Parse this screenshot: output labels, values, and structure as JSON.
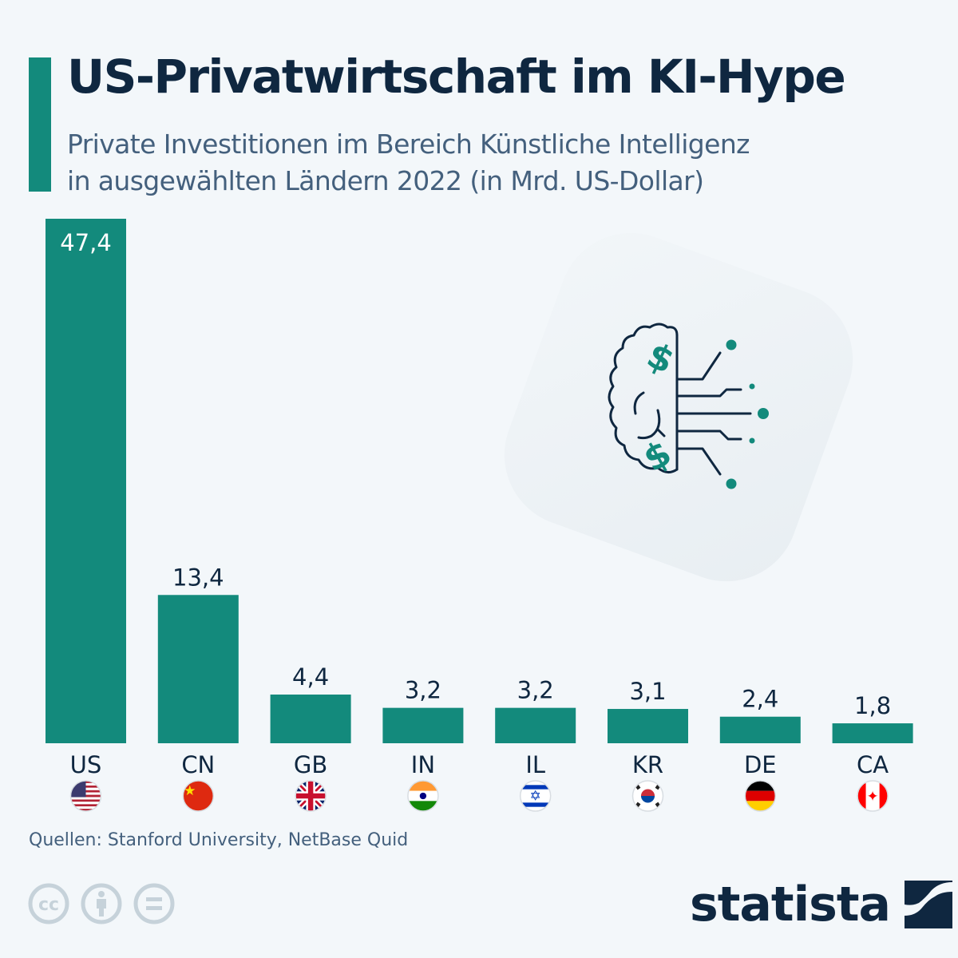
{
  "header": {
    "title": "US-Privatwirtschaft im KI-Hype",
    "subtitle_line1": "Private Investitionen im Bereich Künstliche Intelligenz",
    "subtitle_line2": "in ausgewählten Ländern 2022 (in Mrd. US-Dollar)"
  },
  "colors": {
    "bar": "#138a7c",
    "text_dark": "#0f2740",
    "text_muted": "#44607d",
    "label_inside": "#ffffff",
    "background": "#f3f7fa"
  },
  "chart_data": {
    "type": "bar",
    "title": "US-Privatwirtschaft im KI-Hype",
    "subtitle": "Private Investitionen im Bereich Künstliche Intelligenz in ausgewählten Ländern 2022 (in Mrd. US-Dollar)",
    "xlabel": "",
    "ylabel": "Mrd. US-Dollar",
    "categories": [
      "US",
      "CN",
      "GB",
      "IN",
      "IL",
      "KR",
      "DE",
      "CA"
    ],
    "values": [
      47.4,
      13.4,
      4.4,
      3.2,
      3.2,
      3.1,
      2.4,
      1.8
    ],
    "value_labels": [
      "47,4",
      "13,4",
      "4,4",
      "3,2",
      "3,2",
      "3,1",
      "2,4",
      "1,8"
    ],
    "flags": [
      "us-flag-icon",
      "cn-flag-icon",
      "gb-flag-icon",
      "in-flag-icon",
      "il-flag-icon",
      "kr-flag-icon",
      "de-flag-icon",
      "ca-flag-icon"
    ],
    "ylim": [
      0,
      47.4
    ],
    "grid": false,
    "legend": "none"
  },
  "decoration": {
    "icon": "brain-circuit-dollar-icon"
  },
  "footer": {
    "source": "Quellen: Stanford University, NetBase Quid",
    "license_icons": [
      "cc-icon",
      "by-attribution-icon",
      "nd-no-derivatives-icon"
    ],
    "brand": "statista"
  }
}
